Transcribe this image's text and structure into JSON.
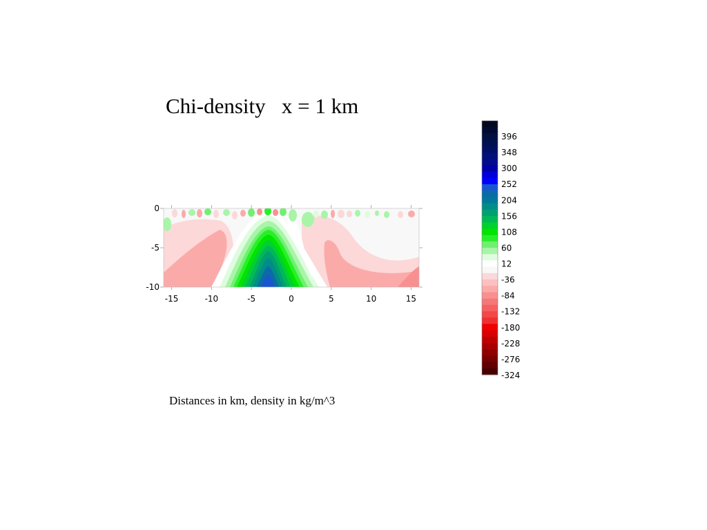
{
  "slide": {
    "title": "Chi-density   x = 1 km",
    "caption": "Distances in km, density in kg/m^3"
  },
  "chart_data": {
    "type": "heatmap",
    "title": "Chi-density   x = 1 km",
    "xlabel": "",
    "ylabel": "",
    "xlim": [
      -16,
      16
    ],
    "ylim": [
      -10,
      0
    ],
    "x_ticks": [
      -15,
      -10,
      -5,
      0,
      5,
      10,
      15
    ],
    "y_ticks": [
      0,
      -5,
      -10
    ],
    "grid": false,
    "colorbar": {
      "placement": "right",
      "labels": [
        396,
        348,
        300,
        252,
        204,
        156,
        108,
        60,
        12,
        -36,
        -84,
        -132,
        -180,
        -228,
        -276,
        -324
      ],
      "levels_top_to_bottom": [
        "#000820",
        "#000a30",
        "#001040",
        "#00104e",
        "#000f63",
        "#001078",
        "#000c8c",
        "#0000a8",
        "#0000d8",
        "#0000ff",
        "#1a55d0",
        "#0d6aa8",
        "#00789a",
        "#008c88",
        "#00a070",
        "#00b858",
        "#00d030",
        "#00e400",
        "#28f028",
        "#70f070",
        "#a8f5a8",
        "#e0fce0",
        "#ffffff",
        "#f8f8f8",
        "#fcd8d8",
        "#fcc0c0",
        "#fbaaaa",
        "#f89090",
        "#f57878",
        "#f56060",
        "#f44848",
        "#f03030",
        "#f00000",
        "#d80000",
        "#c00000",
        "#a80000",
        "#900000",
        "#780000",
        "#600000",
        "#480000"
      ]
    },
    "features": [
      {
        "kind": "positive_anomaly",
        "x_center": -3,
        "peak_value": 252,
        "extent": "depth -10 to -1.5, x -8 to 2"
      },
      {
        "kind": "negative_zone",
        "x_range": [
          -16,
          -6
        ],
        "min_value": -84
      },
      {
        "kind": "negative_zone",
        "x_range": [
          3,
          16
        ],
        "min_value": -84
      }
    ]
  }
}
